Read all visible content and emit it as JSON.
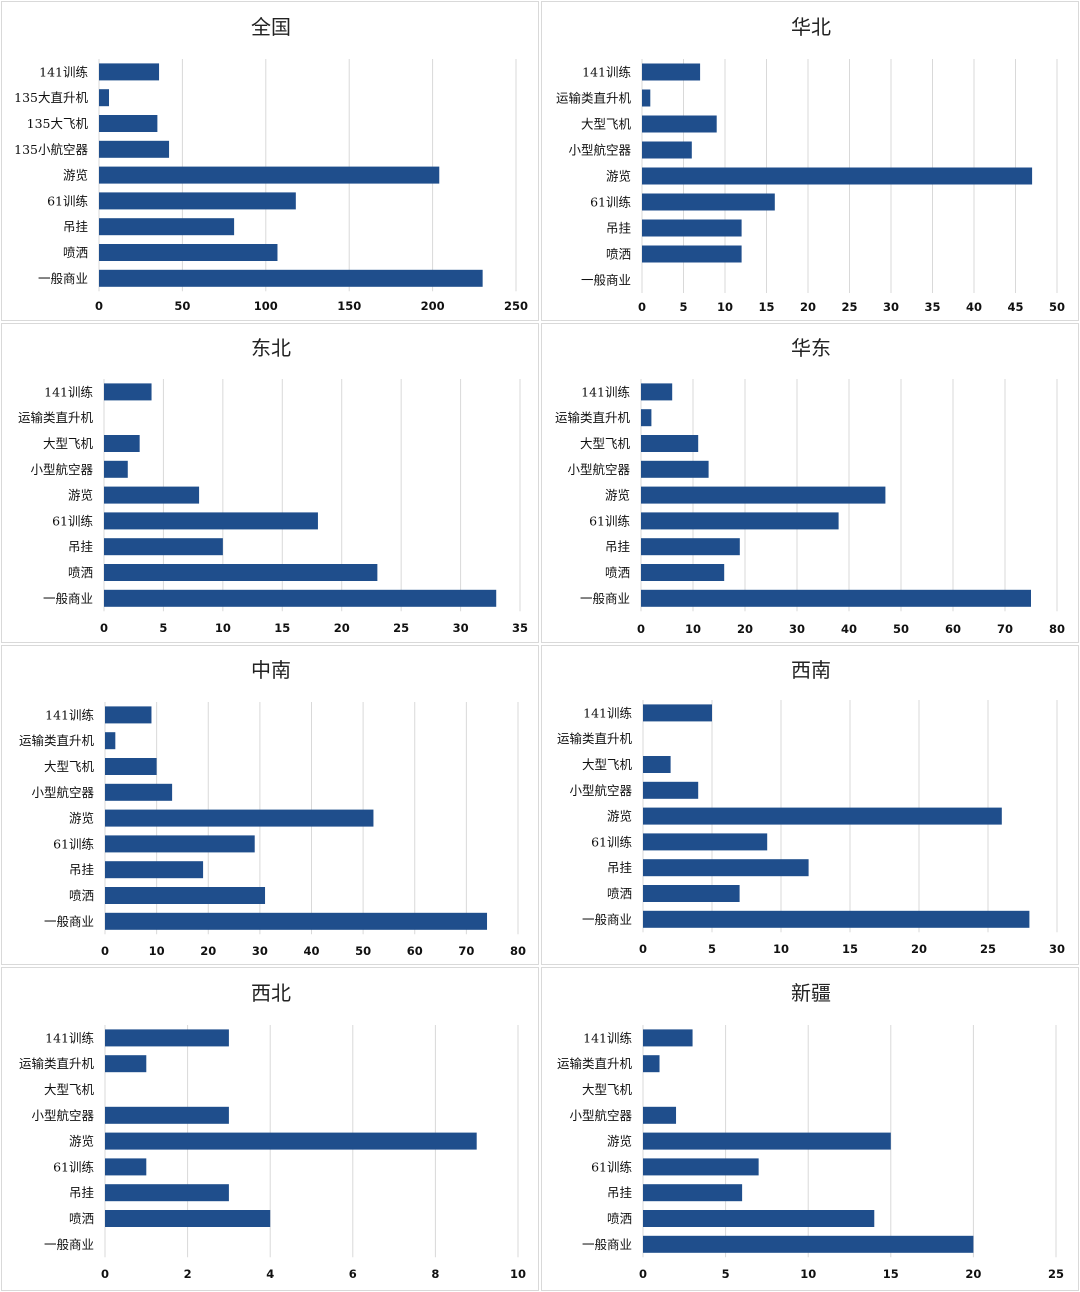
{
  "colors": {
    "bar": "#1f4e8c",
    "grid": "#d9d9d9",
    "border": "#d9d9d9"
  },
  "chart_data": [
    {
      "type": "bar",
      "orientation": "horizontal",
      "title": "全国",
      "categories": [
        "141训练",
        "135大直升机",
        "135大飞机",
        "135小航空器",
        "游览",
        "61训练",
        "吊挂",
        "喷洒",
        "一般商业"
      ],
      "values": [
        36,
        6,
        35,
        42,
        204,
        118,
        81,
        107,
        230
      ],
      "xlim": [
        0,
        250
      ],
      "xticks": [
        0,
        50,
        100,
        150,
        200,
        250
      ]
    },
    {
      "type": "bar",
      "orientation": "horizontal",
      "title": "华北",
      "categories": [
        "141训练",
        "运输类直升机",
        "大型飞机",
        "小型航空器",
        "游览",
        "61训练",
        "吊挂",
        "喷洒",
        "一般商业"
      ],
      "values": [
        7,
        1,
        9,
        6,
        47,
        16,
        12,
        12,
        0
      ],
      "xlim": [
        0,
        50
      ],
      "xticks": [
        0,
        5,
        10,
        15,
        20,
        25,
        30,
        35,
        40,
        45,
        50
      ]
    },
    {
      "type": "bar",
      "orientation": "horizontal",
      "title": "东北",
      "categories": [
        "141训练",
        "运输类直升机",
        "大型飞机",
        "小型航空器",
        "游览",
        "61训练",
        "吊挂",
        "喷洒",
        "一般商业"
      ],
      "values": [
        4,
        0,
        3,
        2,
        8,
        18,
        10,
        23,
        33
      ],
      "xlim": [
        0,
        35
      ],
      "xticks": [
        0,
        5,
        10,
        15,
        20,
        25,
        30,
        35
      ]
    },
    {
      "type": "bar",
      "orientation": "horizontal",
      "title": "华东",
      "categories": [
        "141训练",
        "运输类直升机",
        "大型飞机",
        "小型航空器",
        "游览",
        "61训练",
        "吊挂",
        "喷洒",
        "一般商业"
      ],
      "values": [
        6,
        2,
        11,
        13,
        47,
        38,
        19,
        16,
        75
      ],
      "xlim": [
        0,
        80
      ],
      "xticks": [
        0,
        10,
        20,
        30,
        40,
        50,
        60,
        70,
        80
      ]
    },
    {
      "type": "bar",
      "orientation": "horizontal",
      "title": "中南",
      "categories": [
        "141训练",
        "运输类直升机",
        "大型飞机",
        "小型航空器",
        "游览",
        "61训练",
        "吊挂",
        "喷洒",
        "一般商业"
      ],
      "values": [
        9,
        2,
        10,
        13,
        52,
        29,
        19,
        31,
        74
      ],
      "xlim": [
        0,
        80
      ],
      "xticks": [
        0,
        10,
        20,
        30,
        40,
        50,
        60,
        70,
        80
      ]
    },
    {
      "type": "bar",
      "orientation": "horizontal",
      "title": "西南",
      "categories": [
        "141训练",
        "运输类直升机",
        "大型飞机",
        "小型航空器",
        "游览",
        "61训练",
        "吊挂",
        "喷洒",
        "一般商业"
      ],
      "values": [
        5,
        0,
        2,
        4,
        26,
        9,
        12,
        7,
        28
      ],
      "xlim": [
        0,
        30
      ],
      "xticks": [
        0,
        5,
        10,
        15,
        20,
        25,
        30
      ]
    },
    {
      "type": "bar",
      "orientation": "horizontal",
      "title": "西北",
      "categories": [
        "141训练",
        "运输类直升机",
        "大型飞机",
        "小型航空器",
        "游览",
        "61训练",
        "吊挂",
        "喷洒",
        "一般商业"
      ],
      "values": [
        3,
        1,
        0,
        3,
        9,
        1,
        3,
        4,
        0
      ],
      "xlim": [
        0,
        10
      ],
      "xticks": [
        0,
        2,
        4,
        6,
        8,
        10
      ]
    },
    {
      "type": "bar",
      "orientation": "horizontal",
      "title": "新疆",
      "categories": [
        "141训练",
        "运输类直升机",
        "大型飞机",
        "小型航空器",
        "游览",
        "61训练",
        "吊挂",
        "喷洒",
        "一般商业"
      ],
      "values": [
        3,
        1,
        0,
        2,
        15,
        7,
        6,
        14,
        20
      ],
      "xlim": [
        0,
        25
      ],
      "xticks": [
        0,
        5,
        10,
        15,
        20,
        25
      ]
    }
  ]
}
